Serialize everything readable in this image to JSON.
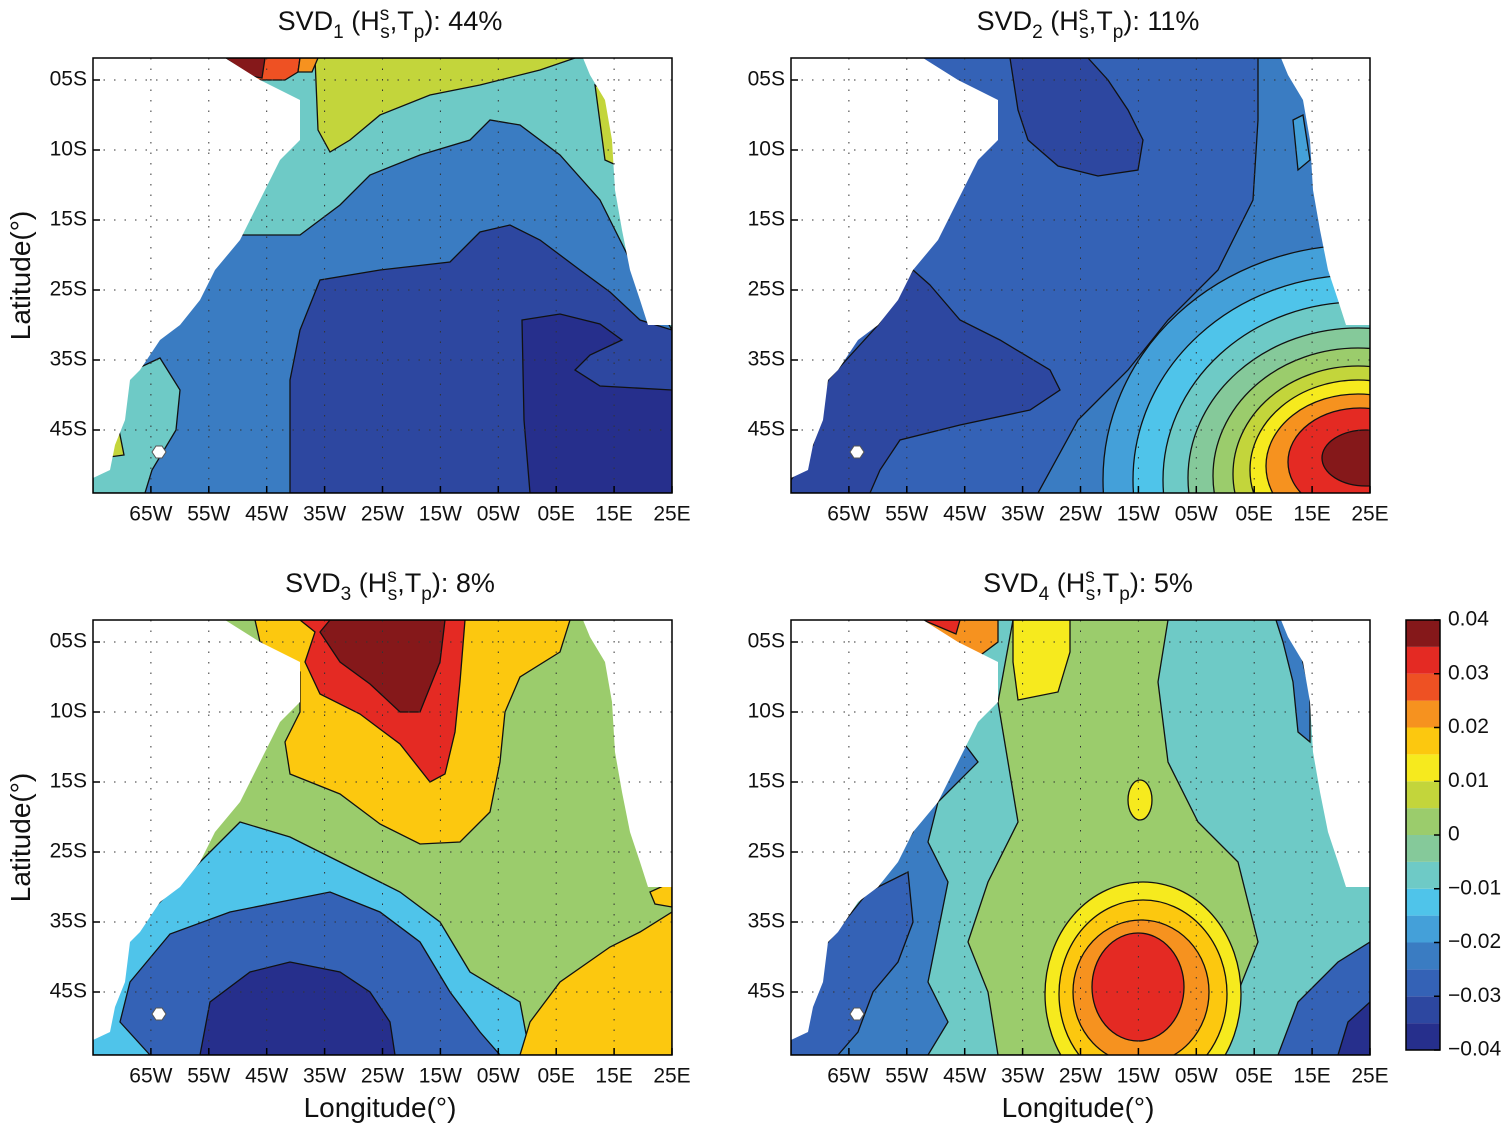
{
  "chart_data": [
    {
      "type": "contour",
      "panel": 1,
      "title_parts": [
        "SVD",
        "1",
        " (H",
        "s",
        "s",
        ",T",
        "p",
        "): 44%"
      ],
      "ylabel": "Latitude(°)",
      "xlim": [
        -75,
        25
      ],
      "xticks": [
        {
          "value": -65,
          "label": "65W"
        },
        {
          "value": -55,
          "label": "55W"
        },
        {
          "value": -45,
          "label": "45W"
        },
        {
          "value": -35,
          "label": "35W"
        },
        {
          "value": -25,
          "label": "25W"
        },
        {
          "value": -15,
          "label": "15W"
        },
        {
          "value": -5,
          "label": "05W"
        },
        {
          "value": 5,
          "label": "05E"
        },
        {
          "value": 15,
          "label": "15E"
        },
        {
          "value": 25,
          "label": "25E"
        }
      ],
      "ycategories": [
        "05S",
        "10S",
        "15S",
        "25S",
        "35S",
        "45S"
      ],
      "grid": true
    },
    {
      "type": "contour",
      "panel": 2,
      "title_parts": [
        "SVD",
        "2",
        " (H",
        "s",
        "s",
        ",T",
        "p",
        "): 11%"
      ],
      "xlim": [
        -75,
        25
      ],
      "xticks": [
        {
          "value": -65,
          "label": "65W"
        },
        {
          "value": -55,
          "label": "55W"
        },
        {
          "value": -45,
          "label": "45W"
        },
        {
          "value": -35,
          "label": "35W"
        },
        {
          "value": -25,
          "label": "25W"
        },
        {
          "value": -15,
          "label": "15W"
        },
        {
          "value": -5,
          "label": "05W"
        },
        {
          "value": 5,
          "label": "05E"
        },
        {
          "value": 15,
          "label": "15E"
        },
        {
          "value": 25,
          "label": "25E"
        }
      ],
      "ycategories": [
        "05S",
        "10S",
        "15S",
        "25S",
        "35S",
        "45S"
      ],
      "grid": true
    },
    {
      "type": "contour",
      "panel": 3,
      "title_parts": [
        "SVD",
        "3",
        " (H",
        "s",
        "s",
        ",T",
        "p",
        "): 8%"
      ],
      "ylabel": "Latitude(°)",
      "xlabel": "Longitude(°)",
      "xlim": [
        -75,
        25
      ],
      "xticks": [
        {
          "value": -65,
          "label": "65W"
        },
        {
          "value": -55,
          "label": "55W"
        },
        {
          "value": -45,
          "label": "45W"
        },
        {
          "value": -35,
          "label": "35W"
        },
        {
          "value": -25,
          "label": "25W"
        },
        {
          "value": -15,
          "label": "15W"
        },
        {
          "value": -5,
          "label": "05W"
        },
        {
          "value": 5,
          "label": "05E"
        },
        {
          "value": 15,
          "label": "15E"
        },
        {
          "value": 25,
          "label": "25E"
        }
      ],
      "ycategories": [
        "05S",
        "10S",
        "15S",
        "25S",
        "35S",
        "45S"
      ],
      "grid": true
    },
    {
      "type": "contour",
      "panel": 4,
      "title_parts": [
        "SVD",
        "4",
        " (H",
        "s",
        "s",
        ",T",
        "p",
        "): 5%"
      ],
      "xlabel": "Longitude(°)",
      "xlim": [
        -75,
        25
      ],
      "xticks": [
        {
          "value": -65,
          "label": "65W"
        },
        {
          "value": -55,
          "label": "55W"
        },
        {
          "value": -45,
          "label": "45W"
        },
        {
          "value": -35,
          "label": "35W"
        },
        {
          "value": -25,
          "label": "25W"
        },
        {
          "value": -15,
          "label": "15W"
        },
        {
          "value": -5,
          "label": "05W"
        },
        {
          "value": 5,
          "label": "05E"
        },
        {
          "value": 15,
          "label": "15E"
        },
        {
          "value": 25,
          "label": "25E"
        }
      ],
      "ycategories": [
        "05S",
        "10S",
        "15S",
        "25S",
        "35S",
        "45S"
      ],
      "grid": true
    }
  ],
  "colorbar": {
    "levels": [
      -0.04,
      -0.035,
      -0.03,
      -0.025,
      -0.02,
      -0.015,
      -0.01,
      -0.005,
      0,
      0.005,
      0.01,
      0.015,
      0.02,
      0.025,
      0.03,
      0.035,
      0.04
    ],
    "colors": [
      "#262f8c",
      "#2d47a0",
      "#3462b6",
      "#3a7cc2",
      "#44a0d9",
      "#4fc4ea",
      "#6ecac6",
      "#85c99a",
      "#9bcc6c",
      "#c3d53b",
      "#f6ea1e",
      "#fcc80f",
      "#f6921f",
      "#ee5123",
      "#e42a23",
      "#85181a"
    ],
    "lim": [
      -0.04,
      0.04
    ],
    "ticks": [
      {
        "value": -0.04,
        "label": "−0.04"
      },
      {
        "value": -0.03,
        "label": "−0.03"
      },
      {
        "value": -0.02,
        "label": "−0.02"
      },
      {
        "value": -0.01,
        "label": "−0.01"
      },
      0,
      0.01,
      0.02,
      0.03,
      0.04
    ]
  }
}
